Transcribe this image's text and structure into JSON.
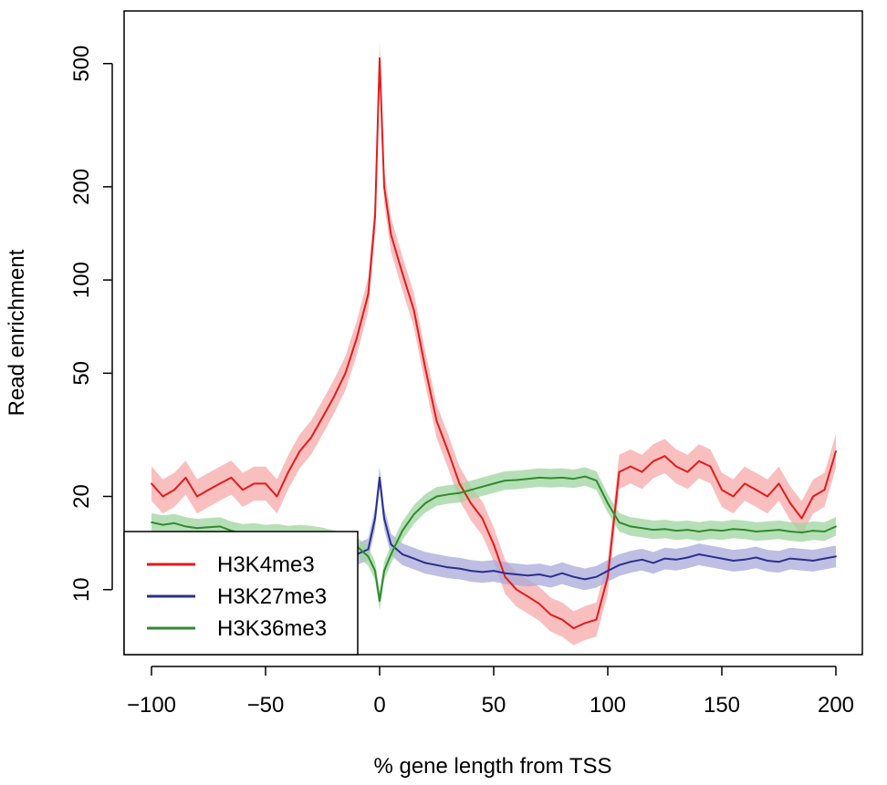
{
  "chart_data": {
    "type": "line",
    "title": "",
    "xlabel": "% gene length from TSS",
    "ylabel": "Read enrichment",
    "xlim": [
      -100,
      200
    ],
    "ylim": [
      6.6,
      620
    ],
    "yscale": "log",
    "grid": false,
    "x_ticks": [
      -100,
      -50,
      0,
      50,
      100,
      150,
      200
    ],
    "x_tick_labels": [
      "−100",
      "−50",
      "0",
      "50",
      "100",
      "150",
      "200"
    ],
    "y_ticks": [
      10,
      20,
      50,
      100,
      200,
      500
    ],
    "y_tick_labels": [
      "10",
      "20",
      "50",
      "100",
      "200",
      "500"
    ],
    "legend_position": "bottom-left",
    "x": [
      -100,
      -95,
      -90,
      -85,
      -80,
      -75,
      -70,
      -65,
      -60,
      -55,
      -50,
      -45,
      -40,
      -35,
      -30,
      -25,
      -20,
      -15,
      -10,
      -5,
      -2,
      0,
      2,
      5,
      10,
      15,
      20,
      25,
      30,
      35,
      40,
      45,
      50,
      55,
      60,
      65,
      70,
      75,
      80,
      85,
      90,
      95,
      100,
      105,
      110,
      115,
      120,
      125,
      130,
      135,
      140,
      145,
      150,
      155,
      160,
      165,
      170,
      175,
      180,
      185,
      190,
      195,
      200
    ],
    "series": [
      {
        "name": "H3K4me3",
        "color": "#e41a1c",
        "band_color": "#f7a9aa",
        "band_halfwidth": 0.055,
        "values": [
          22,
          20,
          21,
          23,
          20,
          21,
          22,
          23,
          21,
          22,
          22,
          20,
          24,
          28,
          31,
          36,
          42,
          50,
          65,
          90,
          160,
          520,
          200,
          140,
          105,
          80,
          52,
          35,
          28,
          22,
          19,
          17,
          14,
          11,
          10,
          9.5,
          9,
          8.3,
          8,
          7.5,
          7.8,
          8,
          11,
          24,
          25,
          24,
          26,
          27,
          25,
          24,
          26,
          25,
          21,
          20,
          22,
          21,
          20,
          22,
          19,
          17,
          20,
          21,
          28
        ]
      },
      {
        "name": "H3K27me3",
        "color": "#2b2f8f",
        "band_color": "#a8aad8",
        "band_halfwidth": 0.035,
        "values": [
          12.5,
          12.2,
          12.8,
          12.4,
          12.6,
          12.3,
          12.7,
          12.5,
          12.3,
          12.6,
          12.4,
          12.5,
          12.5,
          12.4,
          12.6,
          12.5,
          12.6,
          12.4,
          13,
          13.5,
          17,
          23,
          17,
          14,
          13,
          12.6,
          12.2,
          12,
          11.8,
          11.7,
          11.5,
          11.4,
          11.5,
          11.3,
          11.2,
          11.1,
          11.2,
          11,
          11.3,
          11,
          10.8,
          11,
          11.5,
          12,
          12.3,
          12.5,
          12.2,
          12.6,
          12.5,
          12.7,
          13,
          12.8,
          12.6,
          12.4,
          12.5,
          12.7,
          12.4,
          12.3,
          12.6,
          12.5,
          12.4,
          12.6,
          12.8
        ]
      },
      {
        "name": "H3K36me3",
        "color": "#2e8b2e",
        "band_color": "#9fd49f",
        "band_halfwidth": 0.03,
        "values": [
          16.5,
          16.2,
          16.4,
          16,
          15.8,
          15.9,
          16,
          15.5,
          15.2,
          15.3,
          15.1,
          15.2,
          15,
          15.1,
          15,
          14.8,
          14.5,
          14.2,
          13.8,
          12.8,
          11.5,
          9.2,
          11.5,
          13,
          15.5,
          17.5,
          19,
          20,
          20.3,
          20.5,
          21,
          21.5,
          22,
          22.5,
          22.6,
          22.8,
          23,
          22.9,
          23,
          22.8,
          23.2,
          22.5,
          19,
          16.5,
          16,
          15.8,
          15.6,
          15.7,
          15.5,
          15.6,
          15.4,
          15.6,
          15.5,
          15.7,
          15.6,
          15.4,
          15.5,
          15.6,
          15.4,
          15.3,
          15.5,
          15.4,
          16
        ]
      }
    ]
  }
}
